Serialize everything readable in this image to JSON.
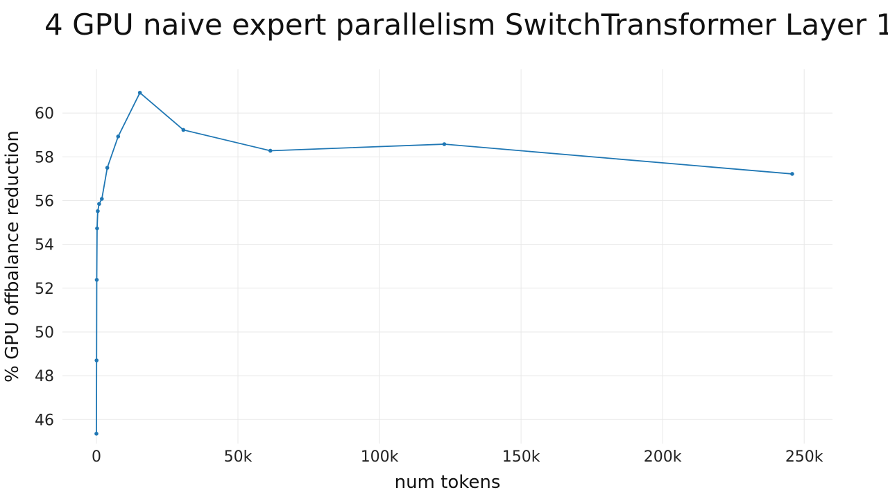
{
  "chart_data": {
    "type": "line",
    "title": "4 GPU naive expert parallelism SwitchTransformer Layer 1",
    "xlabel": "num tokens",
    "ylabel": "% GPU offbalance reduction",
    "xlim": [
      -12000,
      260000
    ],
    "ylim": [
      44.9,
      62
    ],
    "x_ticks": [
      0,
      50000,
      100000,
      150000,
      200000,
      250000
    ],
    "x_tick_labels": [
      "0",
      "50k",
      "100k",
      "150k",
      "200k",
      "250k"
    ],
    "y_ticks": [
      46,
      48,
      50,
      52,
      54,
      56,
      58,
      60
    ],
    "y_tick_labels": [
      "46",
      "48",
      "50",
      "52",
      "54",
      "56",
      "58",
      "60"
    ],
    "grid": true,
    "series": [
      {
        "color": "#1f77b4",
        "x": [
          0,
          60,
          120,
          240,
          480,
          960,
          1920,
          3840,
          7680,
          15360,
          30720,
          61440,
          122880,
          245760
        ],
        "y": [
          45.35,
          48.7,
          52.38,
          54.73,
          55.52,
          55.85,
          56.08,
          57.5,
          58.93,
          60.93,
          59.23,
          58.28,
          58.58,
          57.22
        ]
      }
    ]
  }
}
